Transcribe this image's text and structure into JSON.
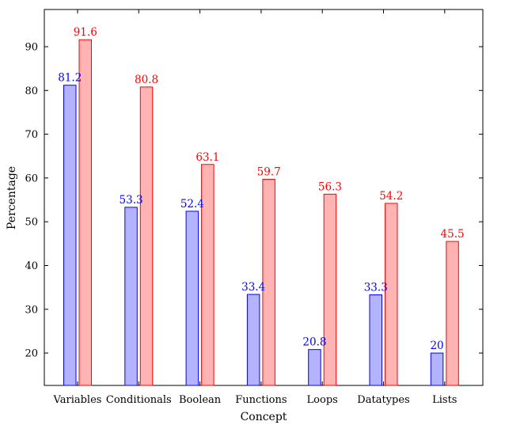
{
  "chart_data": {
    "type": "bar",
    "title": "",
    "xlabel": "Concept",
    "ylabel": "Percentage",
    "categories": [
      "Variables",
      "Conditionals",
      "Boolean",
      "Functions",
      "Loops",
      "Datatypes",
      "Lists"
    ],
    "series": [
      {
        "values": [
          81.2,
          53.3,
          52.4,
          33.4,
          20.8,
          33.3,
          20
        ],
        "labels": [
          "81.2",
          "53.3",
          "52.4",
          "33.4",
          "20.8",
          "33.3",
          "20"
        ],
        "color": "#0000ff",
        "fill": "#b3b3ff"
      },
      {
        "values": [
          91.6,
          80.8,
          63.1,
          59.7,
          56.3,
          54.2,
          45.5
        ],
        "labels": [
          "91.6",
          "80.8",
          "63.1",
          "59.7",
          "56.3",
          "54.2",
          "45.5"
        ],
        "color": "#ff0000",
        "fill": "#ffb3b3"
      }
    ],
    "yticks": [
      "20",
      "30",
      "40",
      "50",
      "60",
      "70",
      "80",
      "90"
    ],
    "ylim": [
      12.6,
      98.5
    ],
    "grid": false,
    "legend": "none"
  }
}
